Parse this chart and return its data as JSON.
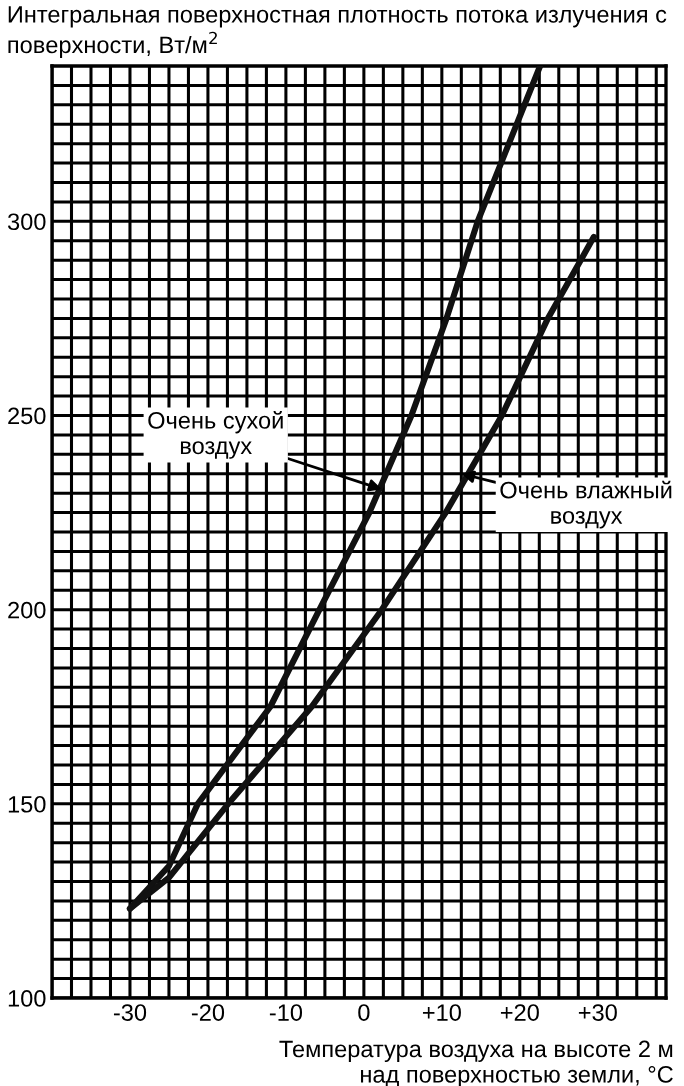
{
  "chart_data": {
    "type": "line",
    "title": "Интегральная поверхностная плотность потока излучения с поверхности, Вт/м$^{2}$",
    "xlabel": "Температура воздуха на высоте 2 м\nнад поверхностью земли, °C",
    "series": [
      {
        "color": "#111111",
        "x": [
          -30,
          -25,
          -21.3,
          -12,
          -5.7,
          0.7,
          6.1,
          10.6,
          14.6,
          22.6
        ],
        "values": [
          123,
          134,
          150,
          175,
          200,
          225,
          250,
          275,
          300,
          340
        ]
      },
      {
        "color": "#111111",
        "x": [
          -30,
          -25,
          -17.4,
          -6.7,
          2.3,
          10.5,
          17.7,
          23.6,
          29.5
        ],
        "values": [
          123,
          131,
          150,
          175,
          200,
          225,
          250,
          275,
          296
        ]
      }
    ],
    "annotations": [
      {
        "text": "Очень сухой\nвоздух",
        "x": 2.3,
        "y": 231
      },
      {
        "text": "Очень влажный\nвоздух",
        "x": 12.5,
        "y": 235
      }
    ],
    "xlim": [
      -40,
      38.75
    ],
    "xticks": [
      {
        "value": -40,
        "label": null
      },
      {
        "value": -37.5,
        "label": null
      },
      {
        "value": -35,
        "label": null
      },
      {
        "value": -32.5,
        "label": null
      },
      {
        "value": -30,
        "label": "-30"
      },
      {
        "value": -27.5,
        "label": null
      },
      {
        "value": -25,
        "label": null
      },
      {
        "value": -22.5,
        "label": null
      },
      {
        "value": -20,
        "label": "-20"
      },
      {
        "value": -17.5,
        "label": null
      },
      {
        "value": -15,
        "label": null
      },
      {
        "value": -12.5,
        "label": null
      },
      {
        "value": -10,
        "label": "-10"
      },
      {
        "value": -7.5,
        "label": null
      },
      {
        "value": -5,
        "label": null
      },
      {
        "value": -2.5,
        "label": null
      },
      0,
      {
        "value": 2.5,
        "label": null
      },
      {
        "value": 5,
        "label": null
      },
      {
        "value": 7.5,
        "label": null
      },
      {
        "value": 10,
        "label": "+10"
      },
      {
        "value": 12.5,
        "label": null
      },
      {
        "value": 15,
        "label": null
      },
      {
        "value": 17.5,
        "label": null
      },
      {
        "value": 20,
        "label": "+20"
      },
      {
        "value": 22.5,
        "label": null
      },
      {
        "value": 25,
        "label": null
      },
      {
        "value": 27.5,
        "label": null
      },
      {
        "value": 30,
        "label": "+30"
      },
      {
        "value": 32.5,
        "label": null
      },
      {
        "value": 35,
        "label": null
      },
      {
        "value": 37.5,
        "label": null
      }
    ],
    "ylim": [
      100,
      340
    ],
    "yticks": [
      100,
      {
        "value": 105,
        "label": null
      },
      {
        "value": 110,
        "label": null
      },
      {
        "value": 115,
        "label": null
      },
      {
        "value": 120,
        "label": null
      },
      {
        "value": 125,
        "label": null
      },
      {
        "value": 130,
        "label": null
      },
      {
        "value": 135,
        "label": null
      },
      {
        "value": 140,
        "label": null
      },
      {
        "value": 145,
        "label": null
      },
      150,
      {
        "value": 155,
        "label": null
      },
      {
        "value": 160,
        "label": null
      },
      {
        "value": 165,
        "label": null
      },
      {
        "value": 170,
        "label": null
      },
      {
        "value": 175,
        "label": null
      },
      {
        "value": 180,
        "label": null
      },
      {
        "value": 185,
        "label": null
      },
      {
        "value": 190,
        "label": null
      },
      {
        "value": 195,
        "label": null
      },
      200,
      {
        "value": 205,
        "label": null
      },
      {
        "value": 210,
        "label": null
      },
      {
        "value": 215,
        "label": null
      },
      {
        "value": 220,
        "label": null
      },
      {
        "value": 225,
        "label": null
      },
      {
        "value": 230,
        "label": null
      },
      {
        "value": 235,
        "label": null
      },
      {
        "value": 240,
        "label": null
      },
      {
        "value": 245,
        "label": null
      },
      250,
      {
        "value": 255,
        "label": null
      },
      {
        "value": 260,
        "label": null
      },
      {
        "value": 265,
        "label": null
      },
      {
        "value": 270,
        "label": null
      },
      {
        "value": 275,
        "label": null
      },
      {
        "value": 280,
        "label": null
      },
      {
        "value": 285,
        "label": null
      },
      {
        "value": 290,
        "label": null
      },
      {
        "value": 295,
        "label": null
      },
      300,
      {
        "value": 305,
        "label": null
      },
      {
        "value": 310,
        "label": null
      },
      {
        "value": 315,
        "label": null
      },
      {
        "value": 320,
        "label": null
      },
      {
        "value": 325,
        "label": null
      },
      {
        "value": 330,
        "label": null
      },
      {
        "value": 335,
        "label": null
      }
    ],
    "grid": true,
    "legend": false
  }
}
